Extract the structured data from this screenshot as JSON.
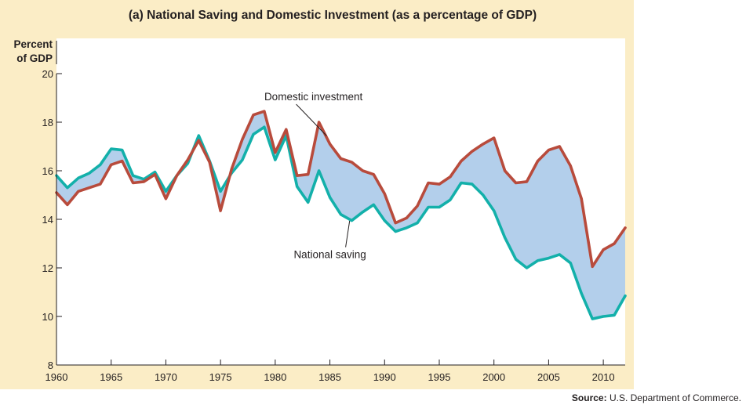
{
  "chart_data": {
    "type": "line",
    "title": "(a) National Saving and Domestic Investment (as a percentage of GDP)",
    "ylabel_line1": "Percent",
    "ylabel_line2": "of GDP",
    "xlabel": "",
    "xlim": [
      1960,
      2012
    ],
    "ylim": [
      8,
      20
    ],
    "x_ticks": [
      1960,
      1965,
      1970,
      1975,
      1980,
      1985,
      1990,
      1995,
      2000,
      2005,
      2010
    ],
    "y_ticks": [
      8,
      10,
      12,
      14,
      16,
      18,
      20
    ],
    "shading_between_series": true,
    "colors": {
      "investment": "#b84b3c",
      "saving": "#13b0aa",
      "fill": "#b3cfeb",
      "plot_bg": "#ffffff",
      "panel_bg": "#fbedc6"
    },
    "x": [
      1960,
      1961,
      1962,
      1963,
      1964,
      1965,
      1966,
      1967,
      1968,
      1969,
      1970,
      1971,
      1972,
      1973,
      1974,
      1975,
      1976,
      1977,
      1978,
      1979,
      1980,
      1981,
      1982,
      1983,
      1984,
      1985,
      1986,
      1987,
      1988,
      1989,
      1990,
      1991,
      1992,
      1993,
      1994,
      1995,
      1996,
      1997,
      1998,
      1999,
      2000,
      2001,
      2002,
      2003,
      2004,
      2005,
      2006,
      2007,
      2008,
      2009,
      2010,
      2011,
      2012
    ],
    "series": [
      {
        "name": "Domestic investment",
        "values": [
          15.1,
          14.6,
          15.15,
          15.3,
          15.45,
          16.25,
          16.4,
          15.5,
          15.55,
          15.85,
          14.85,
          15.8,
          16.45,
          17.25,
          16.35,
          14.35,
          16.05,
          17.3,
          18.3,
          18.45,
          16.75,
          17.7,
          15.8,
          15.85,
          18.0,
          17.1,
          16.5,
          16.35,
          16.0,
          15.85,
          15.05,
          13.85,
          14.05,
          14.55,
          15.5,
          15.45,
          15.75,
          16.4,
          16.8,
          17.1,
          17.35,
          16.0,
          15.5,
          15.55,
          16.4,
          16.85,
          17.0,
          16.2,
          14.85,
          12.05,
          12.75,
          13.0,
          13.65
        ]
      },
      {
        "name": "National saving",
        "values": [
          15.8,
          15.3,
          15.7,
          15.9,
          16.25,
          16.9,
          16.85,
          15.8,
          15.65,
          15.95,
          15.15,
          15.8,
          16.3,
          17.45,
          16.4,
          15.15,
          15.9,
          16.45,
          17.5,
          17.8,
          16.45,
          17.45,
          15.35,
          14.7,
          16.0,
          14.9,
          14.2,
          13.95,
          14.3,
          14.6,
          13.95,
          13.5,
          13.65,
          13.85,
          14.5,
          14.5,
          14.8,
          15.5,
          15.45,
          15.0,
          14.35,
          13.25,
          12.35,
          12.0,
          12.3,
          12.4,
          12.55,
          12.2,
          10.95,
          9.9,
          10.0,
          10.05,
          10.85
        ]
      }
    ],
    "annotations": [
      {
        "text": "Domestic investment",
        "series": "Domestic investment",
        "x": 1983.5,
        "y": 18.9
      },
      {
        "text": "National saving",
        "series": "National saving",
        "x": 1985,
        "y": 12.4
      }
    ]
  },
  "source": {
    "label": "Source:",
    "text": "U.S. Department of Commerce."
  }
}
